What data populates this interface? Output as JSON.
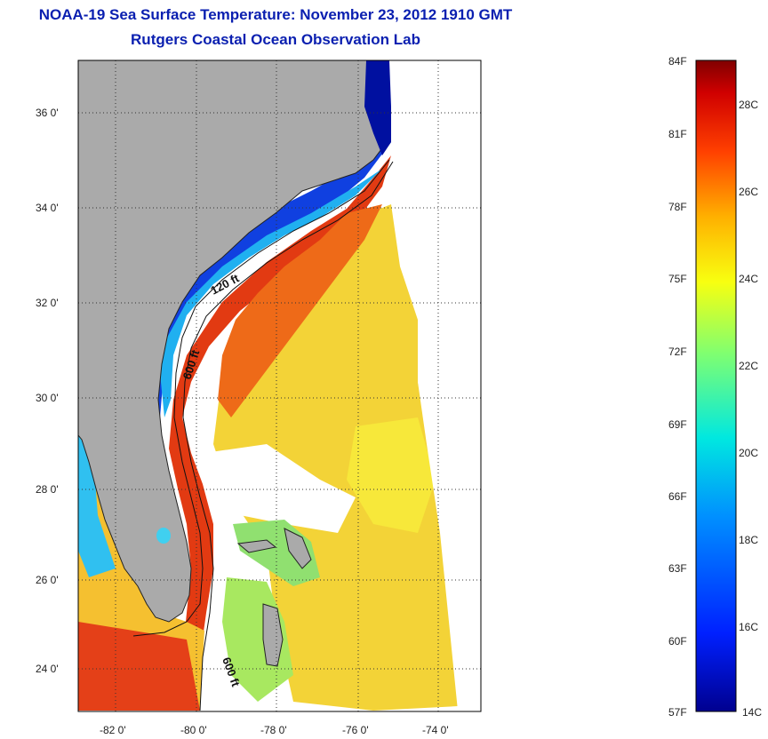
{
  "header": {
    "title": "NOAA-19 Sea Surface Temperature:  November 23, 2012 1910 GMT",
    "subtitle": "Rutgers Coastal Ocean Observation Lab"
  },
  "map": {
    "lat_labels": [
      "36 0'",
      "34 0'",
      "32 0'",
      "30 0'",
      "28 0'",
      "26 0'",
      "24 0'"
    ],
    "lon_labels": [
      "-82 0'",
      "-80 0'",
      "-78 0'",
      "-76 0'",
      "-74 0'"
    ],
    "contour_labels": [
      "120 ft",
      "600 ft",
      "600 ft"
    ],
    "land_color": "#aaaaaa"
  },
  "colorbar": {
    "f_labels": [
      "84F",
      "81F",
      "78F",
      "75F",
      "72F",
      "69F",
      "66F",
      "63F",
      "60F",
      "57F"
    ],
    "c_labels": [
      "28C",
      "26C",
      "24C",
      "22C",
      "20C",
      "18C",
      "16C",
      "14C"
    ]
  }
}
